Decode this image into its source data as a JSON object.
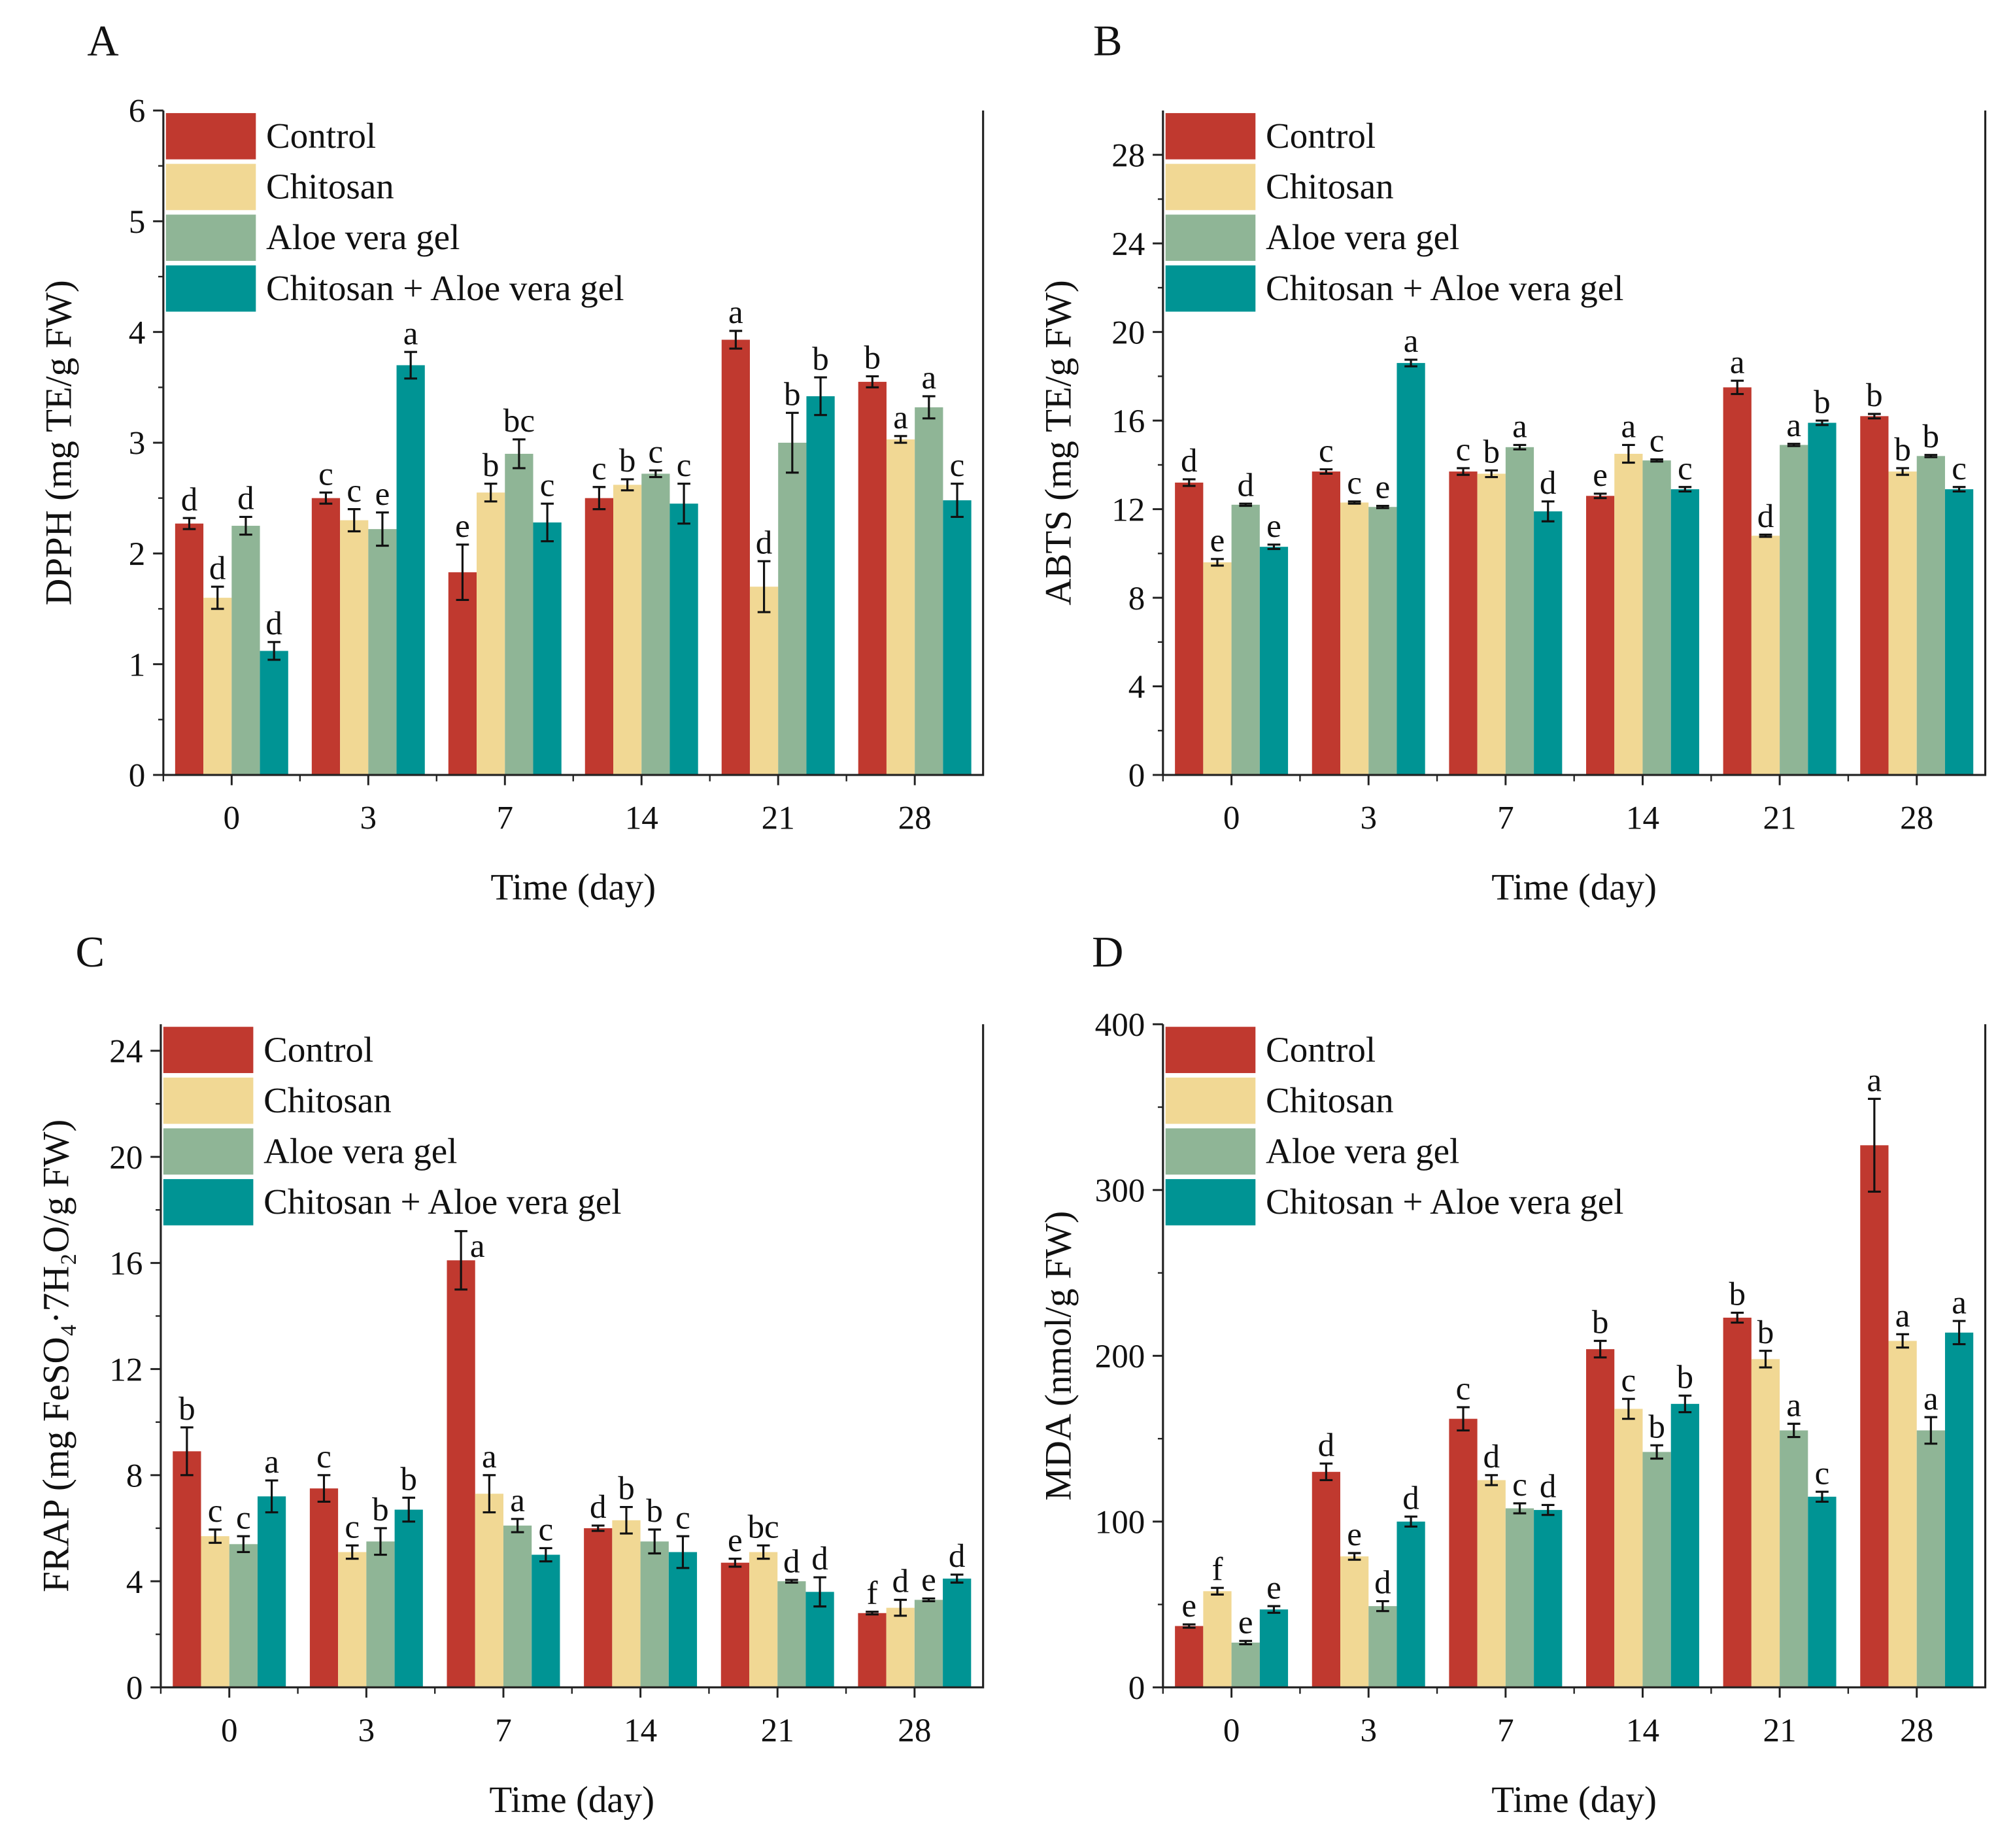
{
  "colors": {
    "Control": "#c0392f",
    "Chitosan": "#f1d894",
    "Aloe vera gel": "#8fb596",
    "Chitosan + Aloe vera gel": "#009494"
  },
  "chart_data": [
    {
      "type": "bar",
      "panel": "A",
      "xlabel": "Time (day)",
      "ylabel": "DPPH (mg TE/g FW)",
      "ylim": [
        0,
        6
      ],
      "yticks": [
        0,
        1,
        2,
        3,
        4,
        5,
        6
      ],
      "grid": false,
      "legend": "top-left",
      "categories": [
        "0",
        "3",
        "7",
        "14",
        "21",
        "28"
      ],
      "series": [
        {
          "name": "Control",
          "values": [
            2.27,
            2.5,
            1.83,
            2.5,
            3.93,
            3.55
          ],
          "errors": [
            0.05,
            0.05,
            0.25,
            0.1,
            0.08,
            0.05
          ],
          "letters": [
            "d",
            "c",
            "e",
            "c",
            "a",
            "b"
          ]
        },
        {
          "name": "Chitosan",
          "values": [
            1.6,
            2.3,
            2.55,
            2.62,
            1.7,
            3.03
          ],
          "errors": [
            0.1,
            0.1,
            0.08,
            0.05,
            0.23,
            0.03
          ],
          "letters": [
            "d",
            "c",
            "b",
            "b",
            "d",
            "a"
          ]
        },
        {
          "name": "Aloe vera gel",
          "values": [
            2.25,
            2.22,
            2.9,
            2.72,
            3.0,
            3.32
          ],
          "errors": [
            0.08,
            0.15,
            0.13,
            0.03,
            0.27,
            0.1
          ],
          "letters": [
            "d",
            "e",
            "bc",
            "c",
            "b",
            "a"
          ]
        },
        {
          "name": "Chitosan + Aloe vera gel",
          "values": [
            1.12,
            3.7,
            2.28,
            2.45,
            3.42,
            2.48
          ],
          "errors": [
            0.08,
            0.12,
            0.17,
            0.18,
            0.17,
            0.15
          ],
          "letters": [
            "d",
            "a",
            "c",
            "c",
            "b",
            "c"
          ]
        }
      ]
    },
    {
      "type": "bar",
      "panel": "B",
      "xlabel": "Time (day)",
      "ylabel": "ABTS (mg TE/g FW)",
      "ylim": [
        0,
        30
      ],
      "yticks": [
        0,
        4,
        8,
        12,
        16,
        20,
        24,
        28
      ],
      "grid": false,
      "legend": "top-left",
      "categories": [
        "0",
        "3",
        "7",
        "14",
        "21",
        "28"
      ],
      "series": [
        {
          "name": "Control",
          "values": [
            13.2,
            13.7,
            13.7,
            12.6,
            17.5,
            16.2
          ],
          "errors": [
            0.15,
            0.1,
            0.15,
            0.1,
            0.3,
            0.1
          ],
          "letters": [
            "d",
            "c",
            "c",
            "e",
            "a",
            "b"
          ]
        },
        {
          "name": "Chitosan",
          "values": [
            9.6,
            12.3,
            13.6,
            14.5,
            10.8,
            13.7
          ],
          "errors": [
            0.15,
            0.05,
            0.15,
            0.4,
            0.05,
            0.15
          ],
          "letters": [
            "e",
            "c",
            "b",
            "a",
            "d",
            "b"
          ]
        },
        {
          "name": "Aloe vera gel",
          "values": [
            12.2,
            12.1,
            14.8,
            14.2,
            14.9,
            14.4
          ],
          "errors": [
            0.05,
            0.05,
            0.1,
            0.05,
            0.05,
            0.05
          ],
          "letters": [
            "d",
            "e",
            "a",
            "c",
            "a",
            "b"
          ]
        },
        {
          "name": "Chitosan + Aloe vera gel",
          "values": [
            10.3,
            18.6,
            11.9,
            12.9,
            15.9,
            12.9
          ],
          "errors": [
            0.1,
            0.15,
            0.45,
            0.1,
            0.1,
            0.1
          ],
          "letters": [
            "e",
            "a",
            "d",
            "c",
            "b",
            "c"
          ]
        }
      ]
    },
    {
      "type": "bar",
      "panel": "C",
      "xlabel": "Time (day)",
      "ylabel": "FRAP (mg FeSO₄·7H₂O/g FW)",
      "ylim": [
        0,
        25
      ],
      "yticks": [
        0,
        4,
        8,
        12,
        16,
        20,
        24
      ],
      "grid": false,
      "legend": "top-left",
      "categories": [
        "0",
        "3",
        "7",
        "14",
        "21",
        "28"
      ],
      "series": [
        {
          "name": "Control",
          "values": [
            8.9,
            7.5,
            16.1,
            6.0,
            4.7,
            2.8
          ],
          "errors": [
            0.9,
            0.5,
            1.1,
            0.1,
            0.15,
            0.05
          ],
          "letters": [
            "b",
            "c",
            "a",
            "d",
            "e",
            "f"
          ]
        },
        {
          "name": "Chitosan",
          "values": [
            5.7,
            5.1,
            7.3,
            6.3,
            5.1,
            3.0
          ],
          "errors": [
            0.25,
            0.25,
            0.7,
            0.5,
            0.25,
            0.3
          ],
          "letters": [
            "c",
            "c",
            "a",
            "b",
            "bc",
            "d"
          ]
        },
        {
          "name": "Aloe vera gel",
          "values": [
            5.4,
            5.5,
            6.1,
            5.5,
            4.0,
            3.3
          ],
          "errors": [
            0.3,
            0.5,
            0.25,
            0.45,
            0.05,
            0.05
          ],
          "letters": [
            "c",
            "b",
            "a",
            "b",
            "d",
            "e"
          ]
        },
        {
          "name": "Chitosan + Aloe vera gel",
          "values": [
            7.2,
            6.7,
            5.0,
            5.1,
            3.6,
            4.1
          ],
          "errors": [
            0.6,
            0.45,
            0.25,
            0.6,
            0.55,
            0.15
          ],
          "letters": [
            "a",
            "b",
            "c",
            "c",
            "d",
            "d"
          ]
        }
      ]
    },
    {
      "type": "bar",
      "panel": "D",
      "xlabel": "Time (day)",
      "ylabel": "MDA (nmol/g FW)",
      "ylim": [
        0,
        400
      ],
      "yticks": [
        0,
        100,
        200,
        300,
        400
      ],
      "grid": false,
      "legend": "top-left",
      "categories": [
        "0",
        "3",
        "7",
        "14",
        "21",
        "28"
      ],
      "series": [
        {
          "name": "Control",
          "values": [
            37,
            130,
            162,
            204,
            223,
            327
          ],
          "errors": [
            1,
            5,
            7,
            5,
            3,
            28
          ],
          "letters": [
            "e",
            "d",
            "c",
            "b",
            "b",
            "a"
          ]
        },
        {
          "name": "Chitosan",
          "values": [
            58,
            79,
            125,
            168,
            198,
            209
          ],
          "errors": [
            2,
            2,
            3,
            6,
            5,
            4
          ],
          "letters": [
            "f",
            "e",
            "d",
            "c",
            "b",
            "a"
          ]
        },
        {
          "name": "Aloe vera gel",
          "values": [
            27,
            49,
            108,
            142,
            155,
            155
          ],
          "errors": [
            1,
            3,
            3,
            4,
            4,
            8
          ],
          "letters": [
            "e",
            "d",
            "c",
            "b",
            "a",
            "a"
          ]
        },
        {
          "name": "Chitosan + Aloe vera gel",
          "values": [
            47,
            100,
            107,
            171,
            115,
            214
          ],
          "errors": [
            2,
            3,
            3,
            5,
            3,
            7
          ],
          "letters": [
            "e",
            "d",
            "d",
            "b",
            "c",
            "a"
          ]
        }
      ]
    }
  ]
}
